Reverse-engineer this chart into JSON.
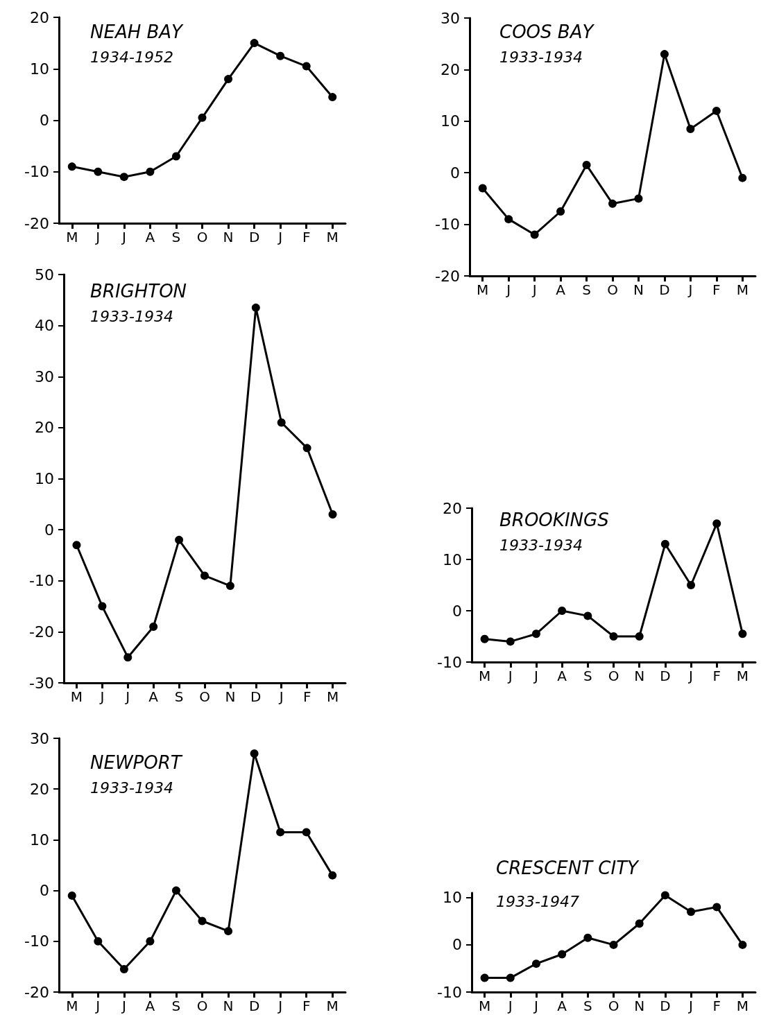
{
  "chart_data": [
    {
      "type": "line",
      "title": "NEAH BAY",
      "subtitle": "1934-1952",
      "categories": [
        "M",
        "J",
        "J",
        "A",
        "S",
        "O",
        "N",
        "D",
        "J",
        "F",
        "M"
      ],
      "values": [
        -9,
        -10,
        -11,
        -10,
        -7,
        0.5,
        8,
        15,
        12.5,
        10.5,
        4.5
      ],
      "color": "#000000",
      "marker": "circle",
      "ylim": [
        -20,
        20
      ],
      "yticks": [
        -20,
        -10,
        0,
        10,
        20
      ]
    },
    {
      "type": "line",
      "title": "COOS BAY",
      "subtitle": "1933-1934",
      "categories": [
        "M",
        "J",
        "J",
        "A",
        "S",
        "O",
        "N",
        "D",
        "J",
        "F",
        "M"
      ],
      "values": [
        -3,
        -9,
        -12,
        -7.5,
        1.5,
        -6,
        -5,
        23,
        8.5,
        12,
        -1
      ],
      "color": "#000000",
      "marker": "circle",
      "ylim": [
        -20,
        30
      ],
      "yticks": [
        -20,
        -10,
        0,
        10,
        20,
        30
      ]
    },
    {
      "type": "line",
      "title": "BRIGHTON",
      "subtitle": "1933-1934",
      "categories": [
        "M",
        "J",
        "J",
        "A",
        "S",
        "O",
        "N",
        "D",
        "J",
        "F",
        "M"
      ],
      "values": [
        -3,
        -15,
        -25,
        -19,
        -2,
        -9,
        -11,
        43.5,
        21,
        16,
        3
      ],
      "color": "#000000",
      "marker": "circle",
      "ylim": [
        -30,
        50
      ],
      "yticks": [
        -30,
        -20,
        -10,
        0,
        10,
        20,
        30,
        40,
        50
      ]
    },
    {
      "type": "line",
      "title": "BROOKINGS",
      "subtitle": "1933-1934",
      "categories": [
        "M",
        "J",
        "J",
        "A",
        "S",
        "O",
        "N",
        "D",
        "J",
        "F",
        "M"
      ],
      "values": [
        -5.5,
        -6,
        -4.5,
        0,
        -1,
        -5,
        -5,
        13,
        5,
        17,
        -4.5
      ],
      "color": "#000000",
      "marker": "circle",
      "ylim": [
        -10,
        20
      ],
      "yticks": [
        -10,
        0,
        10,
        20
      ]
    },
    {
      "type": "line",
      "title": "NEWPORT",
      "subtitle": "1933-1934",
      "categories": [
        "M",
        "J",
        "J",
        "A",
        "S",
        "O",
        "N",
        "D",
        "J",
        "F",
        "M"
      ],
      "values": [
        -1,
        -10,
        -15.5,
        -10,
        0,
        -6,
        -8,
        27,
        11.5,
        11.5,
        3
      ],
      "color": "#000000",
      "marker": "circle",
      "ylim": [
        -20,
        30
      ],
      "yticks": [
        -20,
        -10,
        0,
        10,
        20,
        30
      ]
    },
    {
      "type": "line",
      "title": "CRESCENT CITY",
      "subtitle": "1933-1947",
      "categories": [
        "M",
        "J",
        "J",
        "A",
        "S",
        "O",
        "N",
        "D",
        "J",
        "F",
        "M"
      ],
      "values": [
        -7,
        -7,
        -4,
        -2,
        1.5,
        0,
        4.5,
        10.5,
        7,
        8,
        0
      ],
      "color": "#000000",
      "marker": "circle",
      "ylim": [
        -10,
        11
      ],
      "yticks": [
        -10,
        0,
        10
      ]
    }
  ]
}
